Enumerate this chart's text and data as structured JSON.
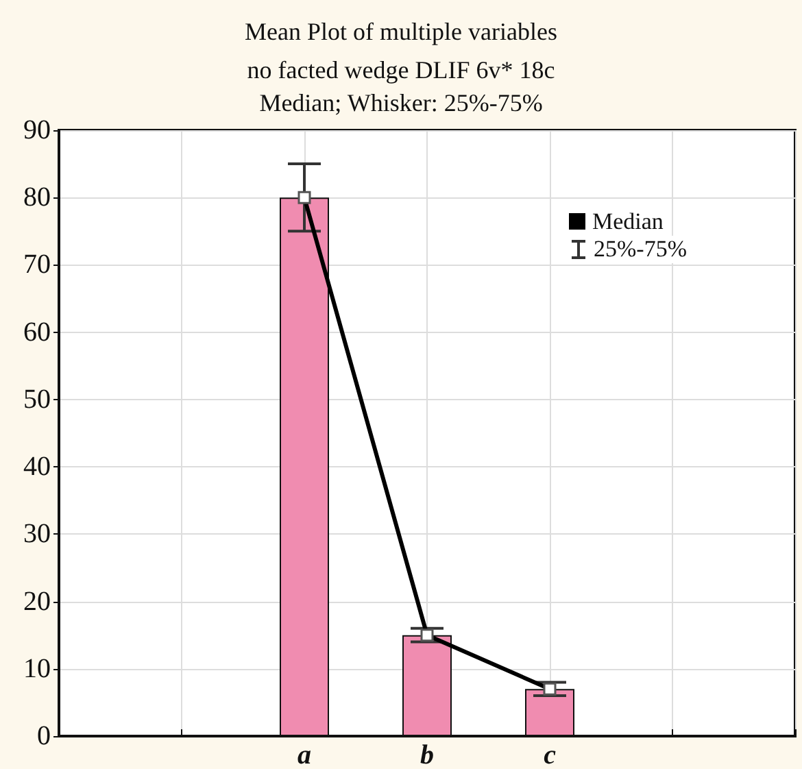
{
  "chart_data": {
    "type": "bar",
    "title": "Mean Plot of multiple variables",
    "subtitle": "no facted wedge DLIF 6v* 18c\nMedian; Whisker: 25%-75%",
    "categories": [
      null,
      null,
      "a",
      "b",
      "c",
      null,
      null
    ],
    "series": [
      {
        "color": "#f08cb0",
        "values": [
          null,
          null,
          80,
          15,
          7,
          null,
          null
        ]
      },
      {
        "type": "line",
        "name": "Median",
        "color": "#000000",
        "marker": "square",
        "values": [
          null,
          null,
          80,
          15,
          7,
          null,
          null
        ],
        "errors": [
          null,
          null,
          [
            75,
            85
          ],
          [
            14,
            16
          ],
          [
            6,
            8
          ],
          null,
          null
        ]
      }
    ],
    "annotations": [
      "25%-75%"
    ],
    "ylim": [
      0,
      90
    ],
    "yticks": [
      0,
      10,
      20,
      30,
      40,
      50,
      60,
      70,
      80,
      90
    ],
    "grid": true,
    "legend": "top right",
    "tick_labels": "xy"
  }
}
